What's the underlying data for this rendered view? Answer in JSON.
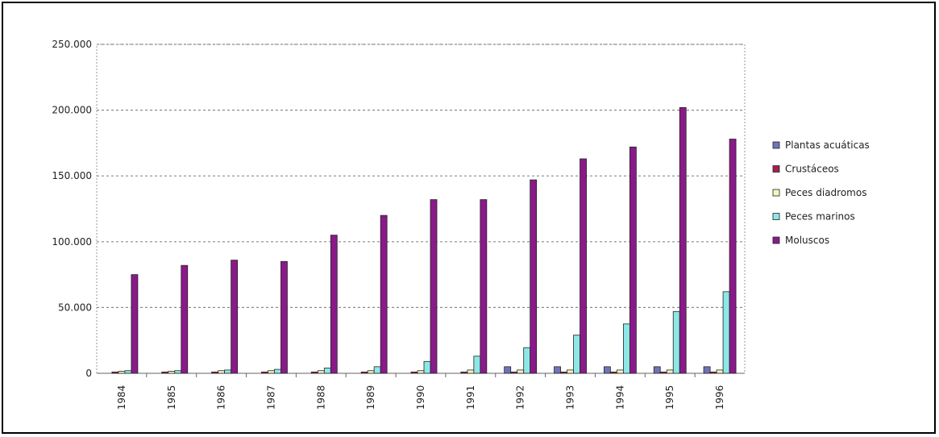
{
  "chart_data": {
    "type": "bar",
    "title": "",
    "xlabel": "",
    "ylabel": "",
    "ylim": [
      0,
      250000
    ],
    "yticks": [
      0,
      50000,
      100000,
      150000,
      200000,
      250000
    ],
    "ytick_labels": [
      "0",
      "50.000",
      "100.000",
      "150.000",
      "200.000",
      "250.000"
    ],
    "grid": "horizontal dashed",
    "legend_position": "right",
    "categories": [
      "1984",
      "1985",
      "1986",
      "1987",
      "1988",
      "1989",
      "1990",
      "1991",
      "1992",
      "1993",
      "1994",
      "1995",
      "1996"
    ],
    "series": [
      {
        "name": "Plantas acuáticas",
        "color": "#6f73b8",
        "values": [
          0,
          0,
          0,
          0,
          0,
          0,
          0,
          0,
          5000,
          5000,
          5000,
          5000,
          5000
        ]
      },
      {
        "name": "Crustáceos",
        "color": "#a3224f",
        "values": [
          1000,
          1000,
          1000,
          1000,
          1000,
          1000,
          1000,
          1000,
          1000,
          1000,
          1000,
          1000,
          1000
        ]
      },
      {
        "name": "Peces diadromos",
        "color": "#f5f5c0",
        "values": [
          1500,
          1500,
          2000,
          2000,
          2000,
          2000,
          2000,
          2500,
          2500,
          2500,
          2500,
          2500,
          2500
        ]
      },
      {
        "name": "Peces marinos",
        "color": "#8ee7e7",
        "values": [
          2000,
          2000,
          2500,
          3000,
          4000,
          5000,
          9000,
          13000,
          19500,
          29000,
          37500,
          47000,
          62000
        ]
      },
      {
        "name": "Moluscos",
        "color": "#8a1a8a",
        "values": [
          75000,
          82000,
          86000,
          85000,
          105000,
          120000,
          132000,
          132000,
          147000,
          163000,
          172000,
          202000,
          178000
        ]
      }
    ]
  }
}
